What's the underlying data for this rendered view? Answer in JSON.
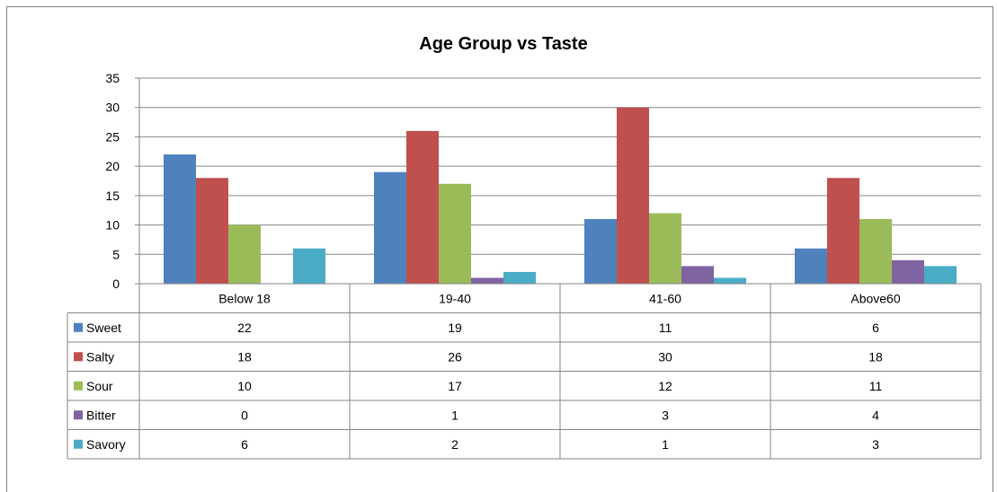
{
  "chart_data": {
    "type": "bar",
    "title": "Age Group vs Taste",
    "categories": [
      "Below 18",
      "19-40",
      "41-60",
      "Above60"
    ],
    "series": [
      {
        "name": "Sweet",
        "values": [
          22,
          19,
          11,
          6
        ],
        "color": "#4F81BD"
      },
      {
        "name": "Salty",
        "values": [
          18,
          26,
          30,
          18
        ],
        "color": "#C0504D"
      },
      {
        "name": "Sour",
        "values": [
          10,
          17,
          12,
          11
        ],
        "color": "#9BBB59"
      },
      {
        "name": "Bitter",
        "values": [
          0,
          1,
          3,
          4
        ],
        "color": "#8064A2"
      },
      {
        "name": "Savory",
        "values": [
          6,
          2,
          1,
          3
        ],
        "color": "#4BACC6"
      }
    ],
    "ylim": [
      0,
      35
    ],
    "yticks": [
      0,
      5,
      10,
      15,
      20,
      25,
      30,
      35
    ],
    "grid": true,
    "legend": "data-table"
  }
}
